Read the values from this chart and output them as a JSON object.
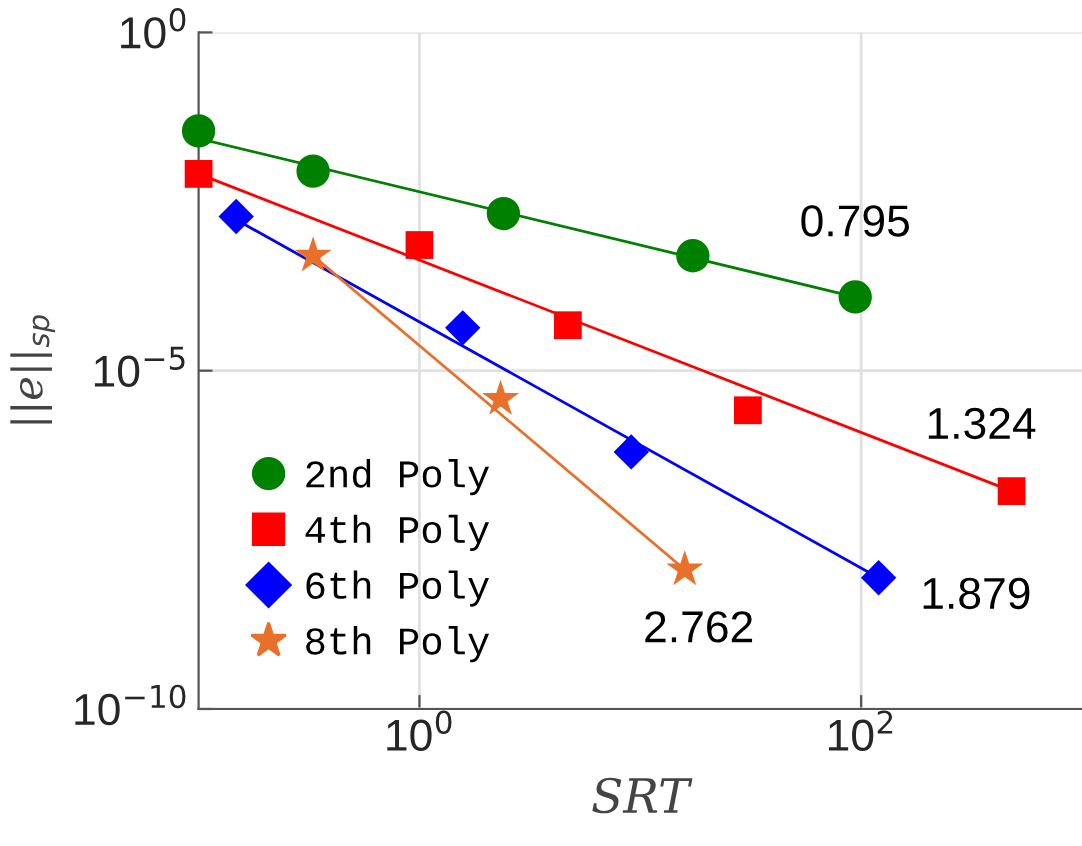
{
  "chart_data": {
    "type": "scatter",
    "xlabel": "SRT",
    "ylabel": "||e||$_{sp}$",
    "log": "xy",
    "grid": true,
    "legend": "bottom left",
    "xlim": [
      0.1,
      1000
    ],
    "ylim": [
      1e-10,
      1
    ],
    "xticks": [
      {
        "value": 1,
        "label": "10$^{0}$"
      },
      {
        "value": 100,
        "label": "10$^{2}$"
      }
    ],
    "yticks": [
      {
        "value": 1e-10,
        "label": "10$^{−10}$"
      },
      {
        "value": 1e-05,
        "label": "10$^{−5}$"
      },
      {
        "value": 1,
        "label": "10$^{0}$"
      }
    ],
    "series": [
      {
        "name": "2nd Poly",
        "marker": "circle",
        "color": "#008000",
        "x": [
          0.1,
          0.33,
          2.4,
          17.3,
          94
        ],
        "values": [
          0.035,
          0.0089,
          0.0021,
          0.0005,
          0.000123
        ]
      },
      {
        "name": "4th Poly",
        "marker": "square",
        "color": "#ff0000",
        "x": [
          0.1,
          1,
          4.7,
          30.7,
          480
        ],
        "values": [
          0.0081,
          0.00072,
          4.7e-05,
          2.6e-06,
          1.66e-07
        ]
      },
      {
        "name": "6th Poly",
        "marker": "diamond",
        "color": "#0000ff",
        "x": [
          0.148,
          1.57,
          9.1,
          120
        ],
        "values": [
          0.0019,
          4.3e-05,
          6.3e-07,
          8.7e-09
        ]
      },
      {
        "name": "8th Poly",
        "marker": "star",
        "color": "#e8702a",
        "x": [
          0.33,
          2.33,
          15.9
        ],
        "values": [
          0.0005,
          3.8e-06,
          1.15e-08
        ]
      },
      {
        "type": "line",
        "color": "#008000",
        "x": [
          0.1,
          94
        ],
        "values": [
          0.027,
          0.000123
        ]
      },
      {
        "type": "line",
        "color": "#ff0000",
        "x": [
          0.1,
          480
        ],
        "values": [
          0.0081,
          1.66e-07
        ]
      },
      {
        "type": "line",
        "color": "#0000ff",
        "x": [
          0.148,
          120
        ],
        "values": [
          0.0017,
          8.7e-09
        ]
      },
      {
        "type": "line",
        "color": "#e8702a",
        "x": [
          0.33,
          15.9
        ],
        "values": [
          0.0005,
          1.15e-08
        ]
      }
    ],
    "annotations": [
      "0.795",
      "1.324",
      "1.879",
      "2.762"
    ]
  }
}
